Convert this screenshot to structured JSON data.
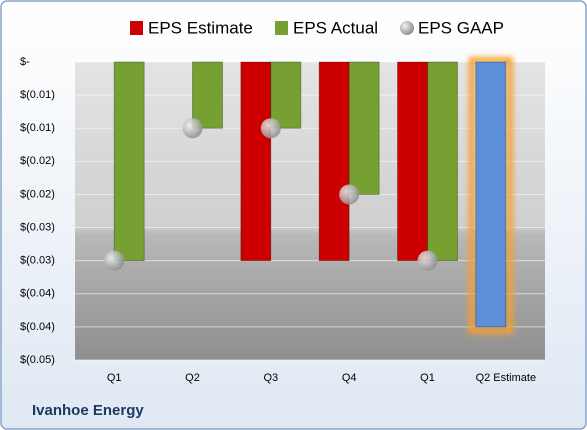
{
  "chart_data": {
    "type": "bar",
    "title": "Ivanhoe Energy",
    "categories": [
      "Q1",
      "Q2",
      "Q3",
      "Q4",
      "Q1",
      "Q2 Estimate"
    ],
    "series": [
      {
        "name": "EPS Estimate",
        "color": "#cc0000",
        "colors": [
          "#cc0000",
          "#cc0000",
          "#cc0000",
          "#cc0000",
          "#cc0000",
          "#5b8fd6"
        ],
        "values": [
          null,
          null,
          -0.03,
          -0.03,
          -0.03,
          -0.04
        ]
      },
      {
        "name": "EPS Actual",
        "color": "#77a033",
        "values": [
          -0.03,
          -0.01,
          -0.01,
          -0.02,
          -0.03,
          null
        ]
      },
      {
        "name": "EPS GAAP",
        "color": "#b0b0b0",
        "marker": "circle",
        "values": [
          -0.03,
          -0.01,
          -0.01,
          -0.02,
          -0.03,
          null
        ]
      }
    ],
    "ylim": [
      -0.045,
      0
    ],
    "yticks": [
      {
        "value": 0,
        "label": "$-"
      },
      {
        "value": -0.005,
        "label": "$(0.01)"
      },
      {
        "value": -0.01,
        "label": "$(0.01)"
      },
      {
        "value": -0.015,
        "label": "$(0.02)"
      },
      {
        "value": -0.02,
        "label": "$(0.02)"
      },
      {
        "value": -0.025,
        "label": "$(0.03)"
      },
      {
        "value": -0.03,
        "label": "$(0.03)"
      },
      {
        "value": -0.035,
        "label": "$(0.04)"
      },
      {
        "value": -0.04,
        "label": "$(0.04)"
      },
      {
        "value": -0.045,
        "label": "$(0.05)"
      }
    ],
    "grid": true
  }
}
